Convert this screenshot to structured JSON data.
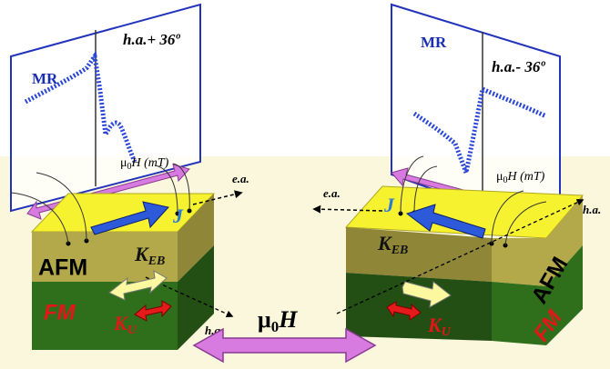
{
  "left_panel": {
    "plot": {
      "y_label": "MR",
      "angle_label": "h.a.+ 36º",
      "x_label": {
        "pre": "μ",
        "sub": "0",
        "post": "H (mT)"
      }
    },
    "block": {
      "top_layer": "AFM",
      "bottom_layer": "FM",
      "exchange": "J",
      "k_eb": {
        "main": "K",
        "sub": "EB"
      },
      "k_u": {
        "main": "K",
        "sub": "U"
      },
      "easy_axis": "e.a.",
      "hard_axis": "h.a."
    }
  },
  "right_panel": {
    "plot": {
      "y_label": "MR",
      "angle_label": "h.a.- 36º",
      "x_label": {
        "pre": "μ",
        "sub": "0",
        "post": "H (mT)"
      }
    },
    "block": {
      "top_layer": "AFM",
      "bottom_layer": "FM",
      "exchange": "J",
      "k_eb": {
        "main": "K",
        "sub": "EB"
      },
      "k_u": {
        "main": "K",
        "sub": "U"
      },
      "easy_axis": "e.a.",
      "hard_axis": "h.a."
    }
  },
  "field_label": {
    "pre": "μ",
    "sub": "0",
    "post": "H"
  }
}
